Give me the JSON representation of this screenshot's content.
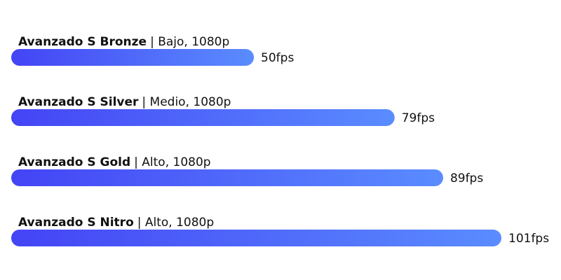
{
  "chart_data": {
    "type": "bar",
    "orientation": "horizontal",
    "categories": [
      "Avanzado S Bronze",
      "Avanzado S Silver",
      "Avanzado S Gold",
      "Avanzado S Nitro"
    ],
    "details": [
      "| Bajo, 1080p",
      "| Medio, 1080p",
      "| Alto, 1080p",
      "| Alto, 1080p"
    ],
    "values": [
      50,
      79,
      89,
      101
    ],
    "value_labels": [
      "50fps",
      "79fps",
      "89fps",
      "101fps"
    ],
    "colors": [
      "#4444f5",
      "#5a8cff"
    ]
  }
}
